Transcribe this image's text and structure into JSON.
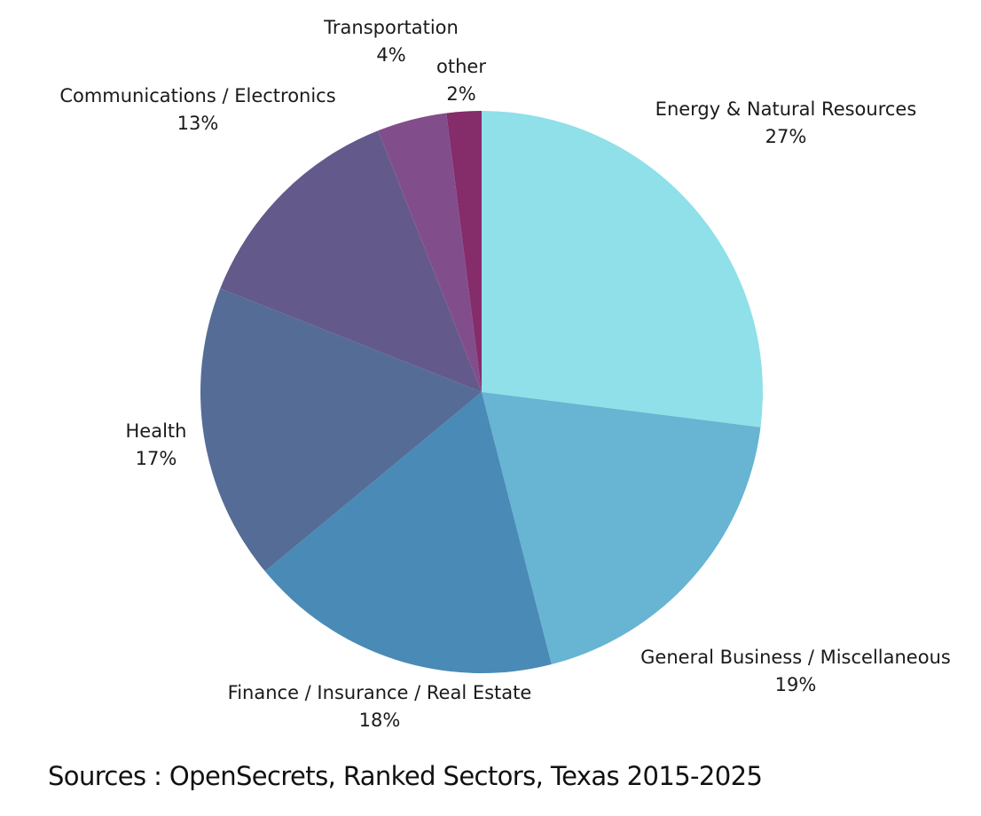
{
  "chart_data": {
    "type": "pie",
    "slices": [
      {
        "label": "Energy & Natural Resources",
        "value": 27,
        "value_label": "27%",
        "color": "#8fe0e8"
      },
      {
        "label": "General Business / Miscellaneous",
        "value": 19,
        "value_label": "19%",
        "color": "#67b4d3"
      },
      {
        "label": "Finance / Insurance / Real Estate",
        "value": 18,
        "value_label": "18%",
        "color": "#4a8ab6"
      },
      {
        "label": "Health",
        "value": 17,
        "value_label": "17%",
        "color": "#556c96"
      },
      {
        "label": "Communications / Electronics",
        "value": 13,
        "value_label": "13%",
        "color": "#64598b"
      },
      {
        "label": "Transportation",
        "value": 4,
        "value_label": "4%",
        "color": "#814e8b"
      },
      {
        "label": "other",
        "value": 2,
        "value_label": "2%",
        "color": "#852c6a"
      }
    ]
  },
  "source": "Sources : OpenSecrets, Ranked Sectors, Texas 2015-2025"
}
